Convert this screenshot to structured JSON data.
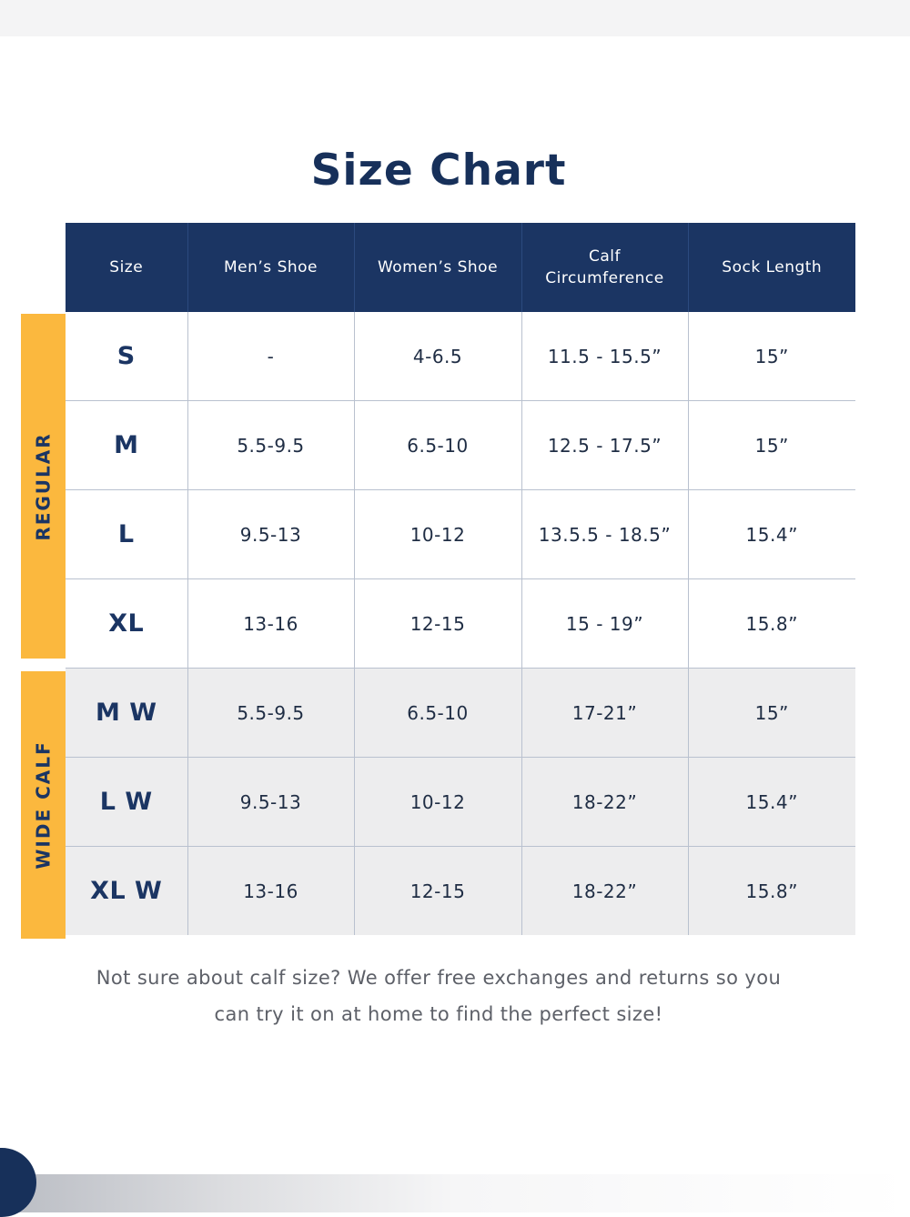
{
  "title": "Size Chart",
  "headers": [
    "Size",
    "Men’s Shoe",
    "Women’s Shoe",
    "Calf\nCircumference",
    "Sock Length"
  ],
  "groups": {
    "regular": "REGULAR",
    "wide": "WIDE CALF"
  },
  "rows": [
    {
      "group": "regular",
      "cells": [
        "S",
        "-",
        "4-6.5",
        "11.5 - 15.5”",
        "15”"
      ]
    },
    {
      "group": "regular",
      "cells": [
        "M",
        "5.5-9.5",
        "6.5-10",
        "12.5 - 17.5”",
        "15”"
      ]
    },
    {
      "group": "regular",
      "cells": [
        "L",
        "9.5-13",
        "10-12",
        "13.5.5 - 18.5”",
        "15.4”"
      ]
    },
    {
      "group": "regular",
      "cells": [
        "XL",
        "13-16",
        "12-15",
        "15 - 19”",
        "15.8”"
      ]
    },
    {
      "group": "wide",
      "cells": [
        "M W",
        "5.5-9.5",
        "6.5-10",
        "17-21”",
        "15”"
      ]
    },
    {
      "group": "wide",
      "cells": [
        "L W",
        "9.5-13",
        "10-12",
        "18-22”",
        "15.4”"
      ]
    },
    {
      "group": "wide",
      "cells": [
        "XL W",
        "13-16",
        "12-15",
        "18-22”",
        "15.8”"
      ]
    }
  ],
  "note": {
    "line1": "Not sure about calf size? We offer free exchanges and returns so you",
    "line2": "can try it on at home to find the perfect size!"
  },
  "colors": {
    "navy": "#1b3563",
    "band": "#fbb83e",
    "wide_row_bg": "#ededee"
  }
}
